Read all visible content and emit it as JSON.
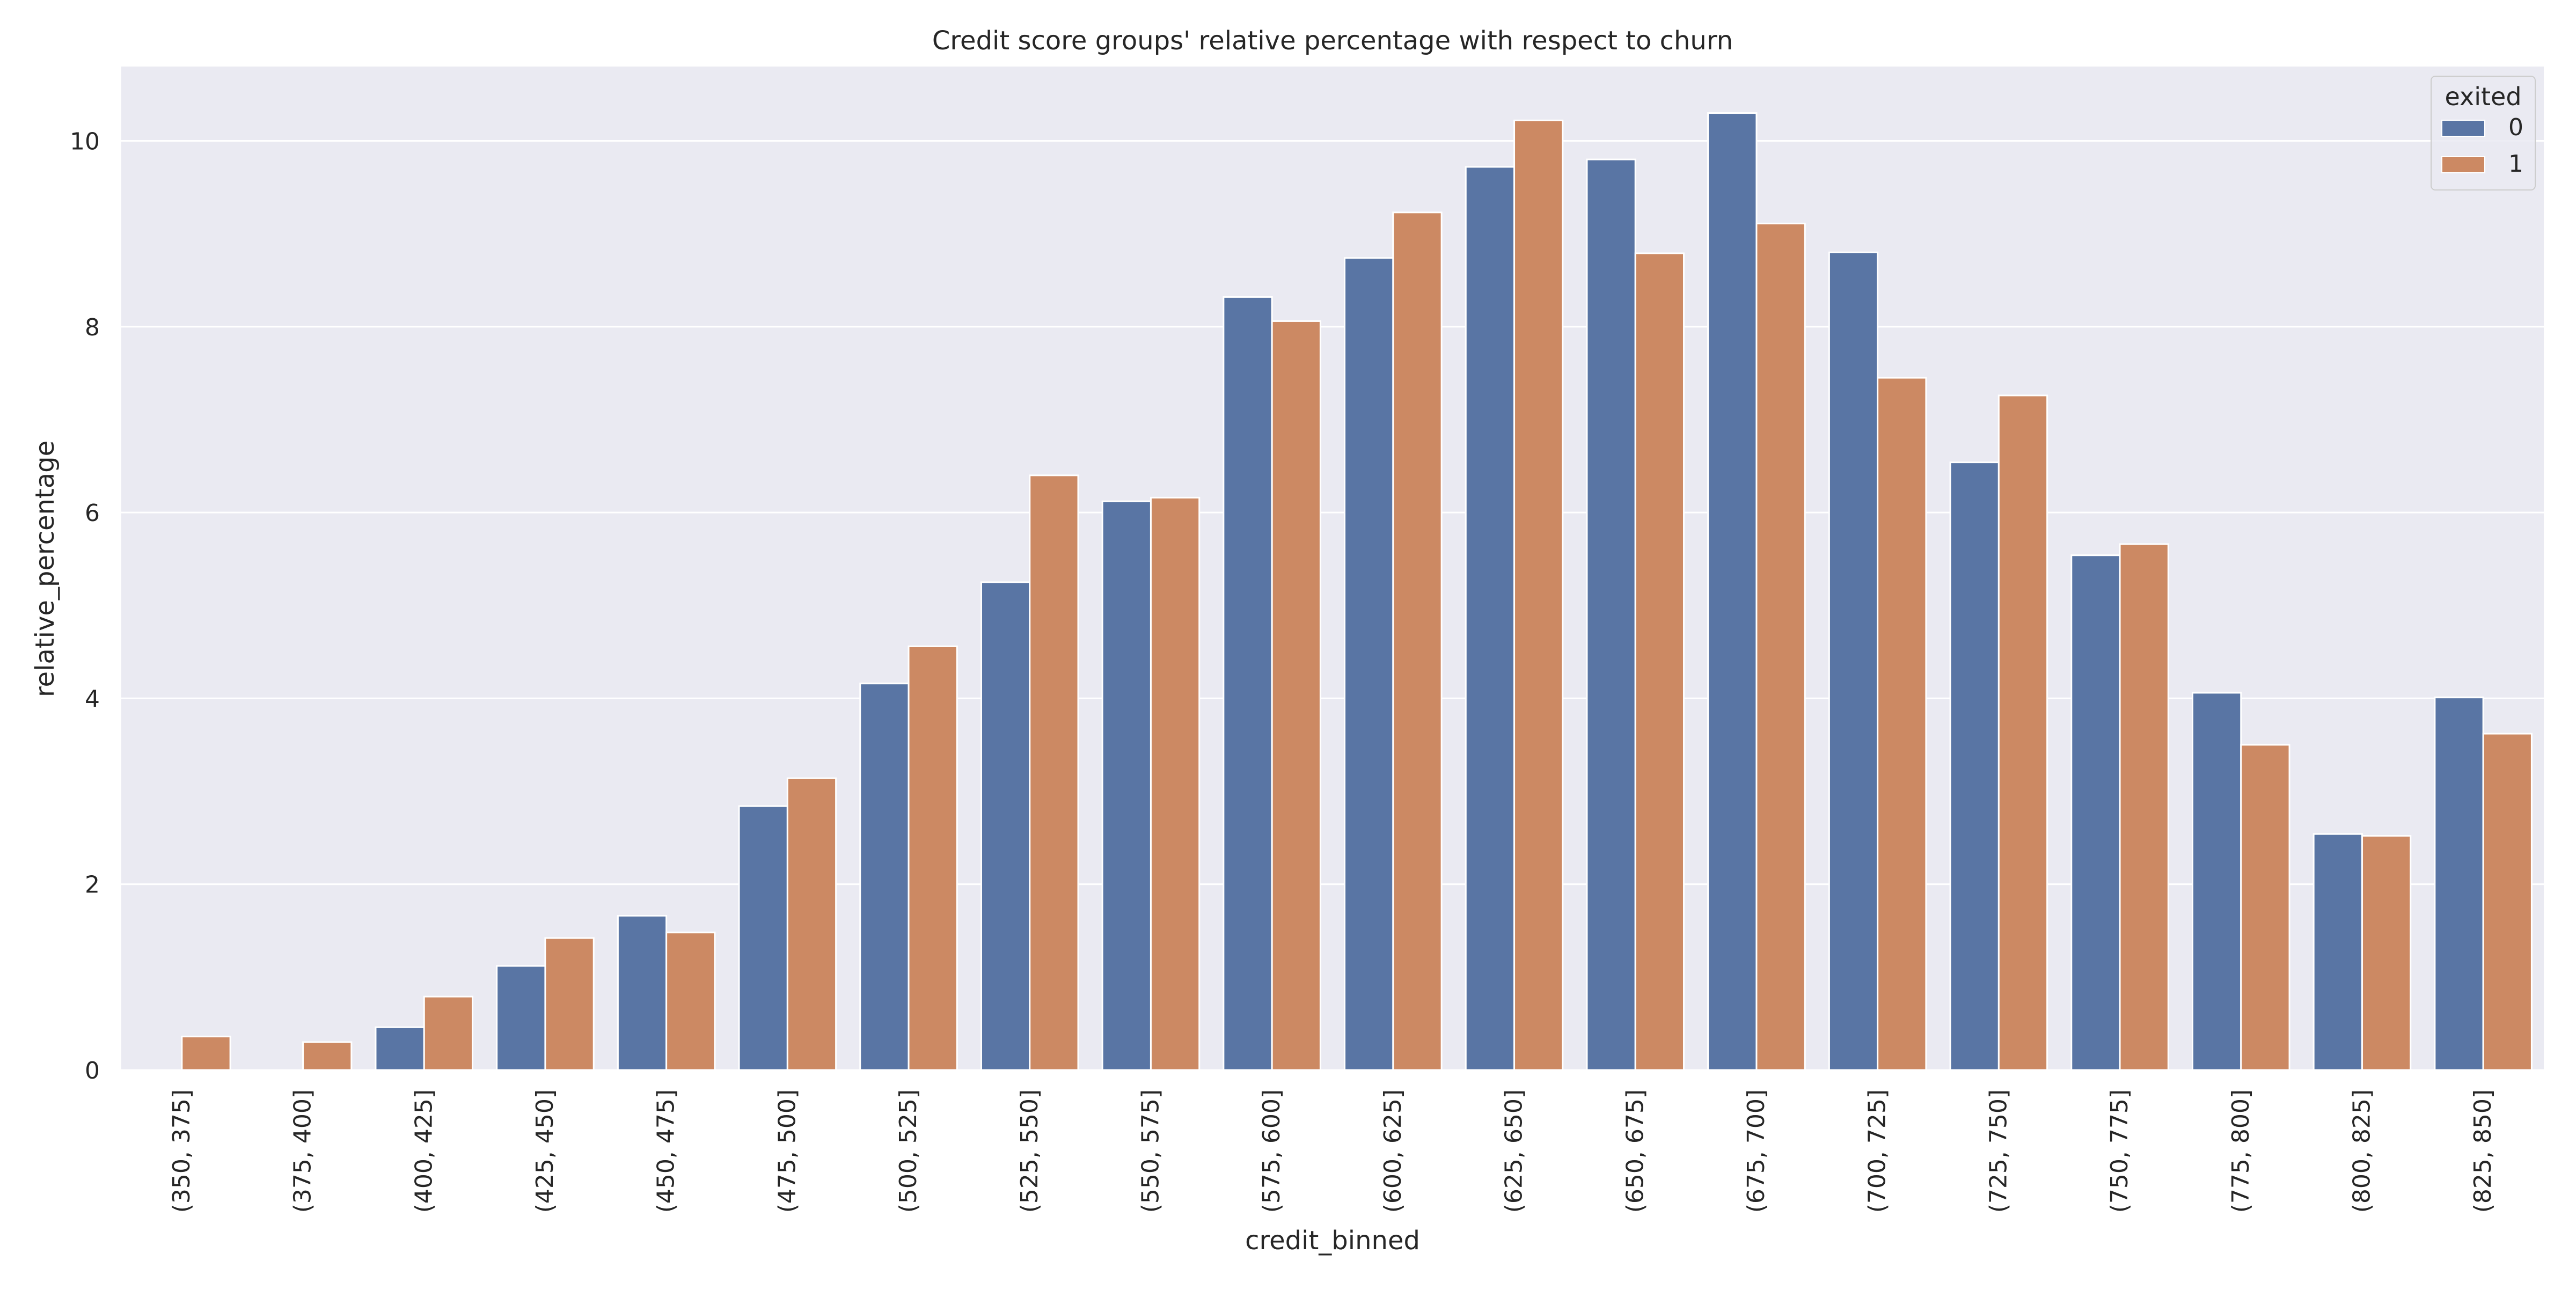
{
  "chart_data": {
    "type": "bar",
    "title": "Credit score groups' relative percentage with respect to churn",
    "xlabel": "credit_binned",
    "ylabel": "relative_percentage",
    "ylim": [
      0,
      10.8
    ],
    "yticks": [
      0,
      2,
      4,
      6,
      8,
      10
    ],
    "grid": true,
    "legend": {
      "title": "exited",
      "placement": "top-right"
    },
    "categories": [
      "(350, 375]",
      "(375, 400]",
      "(400, 425]",
      "(425, 450]",
      "(450, 475]",
      "(475, 500]",
      "(500, 525]",
      "(525, 550]",
      "(550, 575]",
      "(575, 600]",
      "(600, 625]",
      "(625, 650]",
      "(650, 675]",
      "(675, 700]",
      "(700, 725]",
      "(725, 750]",
      "(750, 775]",
      "(775, 800]",
      "(800, 825]",
      "(825, 850]"
    ],
    "series": [
      {
        "name": "0",
        "color": "#5975a4",
        "values": [
          0.0,
          0.0,
          0.46,
          1.12,
          1.66,
          2.84,
          4.16,
          5.25,
          6.12,
          8.32,
          8.74,
          9.72,
          9.8,
          10.3,
          8.8,
          6.54,
          5.54,
          4.06,
          2.54,
          4.01
        ]
      },
      {
        "name": "1",
        "color": "#cc8963",
        "values": [
          0.36,
          0.3,
          0.79,
          1.42,
          1.48,
          3.14,
          4.56,
          6.4,
          6.16,
          8.06,
          9.23,
          10.22,
          8.79,
          9.11,
          7.45,
          7.26,
          5.66,
          3.5,
          2.52,
          3.62
        ]
      }
    ]
  }
}
